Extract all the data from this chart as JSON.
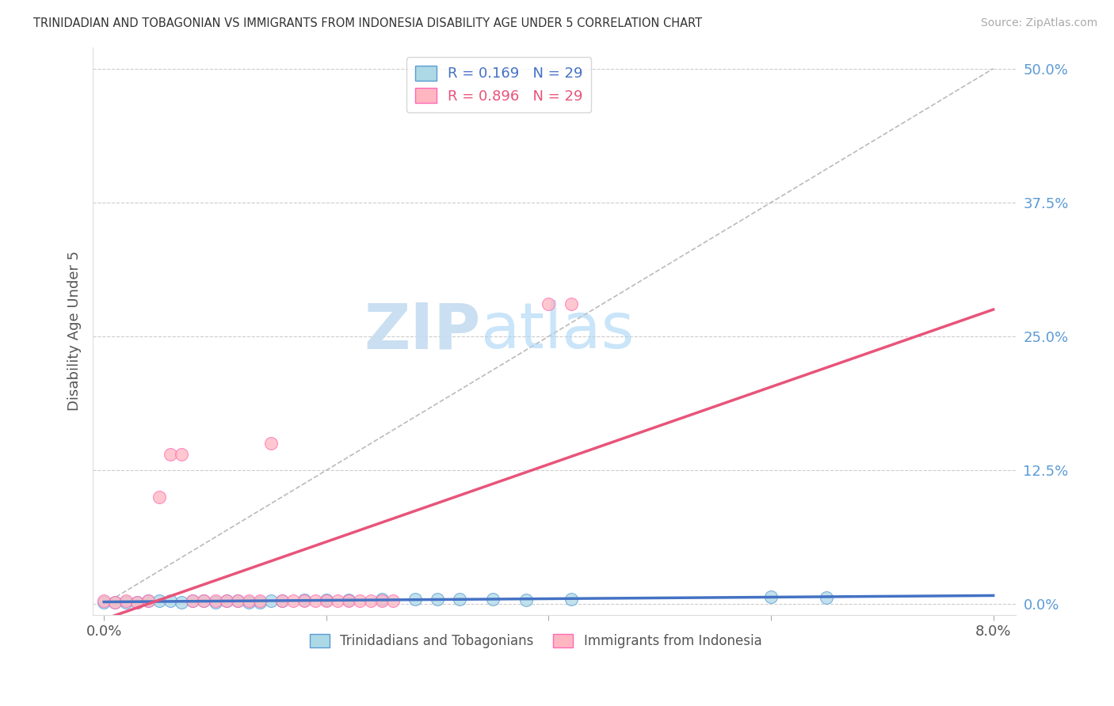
{
  "title": "TRINIDADIAN AND TOBAGONIAN VS IMMIGRANTS FROM INDONESIA DISABILITY AGE UNDER 5 CORRELATION CHART",
  "source": "Source: ZipAtlas.com",
  "ylabel": "Disability Age Under 5",
  "xlim": [
    -0.001,
    0.082
  ],
  "ylim": [
    -0.01,
    0.52
  ],
  "R_blue": 0.169,
  "N_blue": 29,
  "R_pink": 0.896,
  "N_pink": 29,
  "color_blue_fill": "#ADD8E6",
  "color_blue_edge": "#5B9BD5",
  "color_pink_fill": "#FFB6C1",
  "color_pink_edge": "#FF69B4",
  "color_blue_line": "#4472C4",
  "color_pink_line": "#E8547A",
  "color_ref_line": "#BBBBBB",
  "color_ytick": "#5B9BD5",
  "watermark_color": "#D6EAF8",
  "background_color": "#ffffff",
  "blue_x": [
    0.0,
    0.001,
    0.002,
    0.003,
    0.004,
    0.005,
    0.006,
    0.007,
    0.008,
    0.009,
    0.01,
    0.011,
    0.012,
    0.013,
    0.014,
    0.015,
    0.016,
    0.018,
    0.02,
    0.022,
    0.025,
    0.028,
    0.03,
    0.032,
    0.035,
    0.038,
    0.042,
    0.06,
    0.065
  ],
  "blue_y": [
    0.002,
    0.002,
    0.002,
    0.002,
    0.003,
    0.003,
    0.003,
    0.002,
    0.003,
    0.003,
    0.002,
    0.003,
    0.003,
    0.002,
    0.002,
    0.003,
    0.003,
    0.004,
    0.004,
    0.004,
    0.005,
    0.005,
    0.005,
    0.005,
    0.005,
    0.004,
    0.005,
    0.007,
    0.006
  ],
  "pink_x": [
    0.0,
    0.001,
    0.002,
    0.003,
    0.004,
    0.005,
    0.006,
    0.007,
    0.008,
    0.009,
    0.01,
    0.011,
    0.012,
    0.013,
    0.014,
    0.015,
    0.016,
    0.017,
    0.018,
    0.019,
    0.02,
    0.021,
    0.022,
    0.023,
    0.024,
    0.025,
    0.026,
    0.04,
    0.042
  ],
  "pink_y": [
    0.003,
    0.002,
    0.003,
    0.002,
    0.003,
    0.1,
    0.14,
    0.14,
    0.003,
    0.003,
    0.003,
    0.003,
    0.003,
    0.003,
    0.003,
    0.15,
    0.003,
    0.003,
    0.003,
    0.003,
    0.003,
    0.003,
    0.003,
    0.003,
    0.003,
    0.003,
    0.003,
    0.28,
    0.28
  ],
  "legend_labels": [
    "Trinidadians and Tobagonians",
    "Immigrants from Indonesia"
  ]
}
